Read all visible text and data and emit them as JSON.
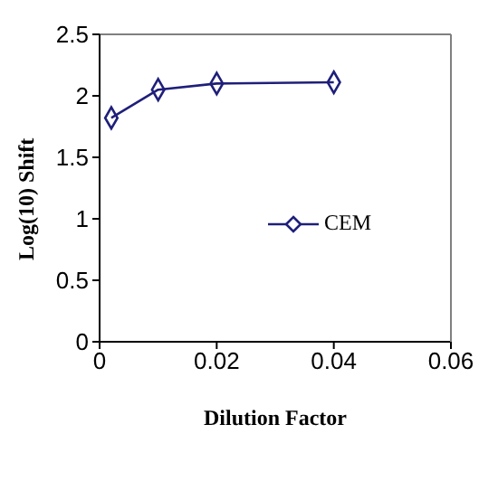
{
  "chart_data": {
    "type": "line",
    "xlabel": "Dilution Factor",
    "ylabel": "Log(10) Shift",
    "x": [
      0.002,
      0.01,
      0.02,
      0.04
    ],
    "series": [
      {
        "name": "CEM",
        "color": "#1f1f7a",
        "values": [
          1.82,
          2.05,
          2.1,
          2.11
        ]
      }
    ],
    "xlim": [
      0,
      0.06
    ],
    "xticks": [
      0,
      0.02,
      0.04,
      0.06
    ],
    "ylim": [
      0,
      2.5
    ],
    "yticks": [
      0,
      0.5,
      1,
      1.5,
      2,
      2.5
    ],
    "grid": false,
    "legend": "right",
    "marker": "diamond",
    "line_style": "solid"
  }
}
